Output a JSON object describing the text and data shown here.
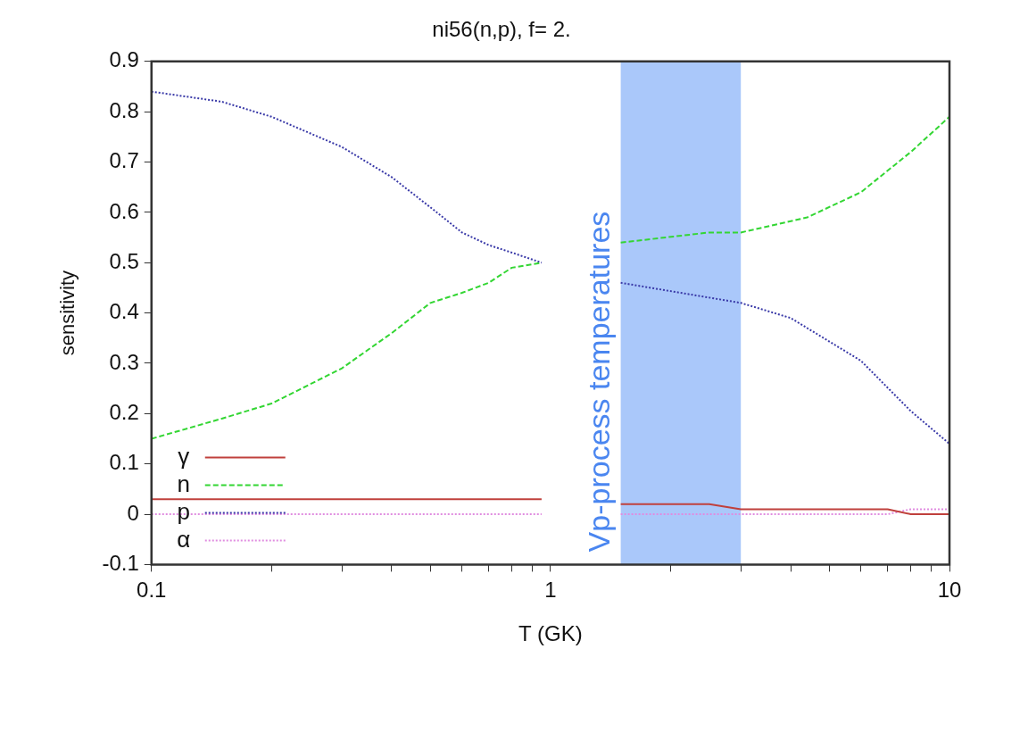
{
  "chart_data": {
    "type": "line",
    "title": "ni56(n,p), f= 2.",
    "xlabel": "T (GK)",
    "ylabel": "sensitivity",
    "log": "x",
    "xlim": [
      0.1,
      10
    ],
    "xticks": [
      0.1,
      {
        "value": 0.2,
        "label": null
      },
      {
        "value": 0.3,
        "label": null
      },
      {
        "value": 0.4,
        "label": null
      },
      {
        "value": 0.5,
        "label": null
      },
      {
        "value": 0.6,
        "label": null
      },
      {
        "value": 0.7,
        "label": null
      },
      {
        "value": 0.8,
        "label": null
      },
      {
        "value": 0.9,
        "label": null
      },
      1,
      {
        "value": 2,
        "label": null
      },
      {
        "value": 3,
        "label": null
      },
      {
        "value": 4,
        "label": null
      },
      {
        "value": 5,
        "label": null
      },
      {
        "value": 6,
        "label": null
      },
      {
        "value": 7,
        "label": null
      },
      {
        "value": 8,
        "label": null
      },
      {
        "value": 9,
        "label": null
      },
      10
    ],
    "ylim": [
      -0.1,
      0.9
    ],
    "yticks": [
      -0.1,
      0,
      0.1,
      0.2,
      0.3,
      0.4,
      0.5,
      0.6,
      0.7,
      0.8,
      0.9
    ],
    "grid": false,
    "legend": "bottom left",
    "marker": "none",
    "bands": [
      {
        "axis": "x",
        "from": 1.5,
        "to": 3,
        "label": "Vp-process temperatures",
        "color": "#aac8fa"
      }
    ],
    "series": [
      {
        "name": "γ",
        "color": "#c0403c",
        "line_style": "solid",
        "x": [
          0.1,
          0.95,
          1.2,
          1.5,
          2.5,
          3,
          7,
          8,
          10
        ],
        "values": [
          0.03,
          0.03,
          null,
          0.02,
          0.02,
          0.01,
          0.01,
          0,
          0
        ]
      },
      {
        "name": "n",
        "color": "#33d633",
        "line_style": "dashed",
        "x": [
          0.1,
          0.15,
          0.2,
          0.3,
          0.4,
          0.5,
          0.6,
          0.7,
          0.8,
          0.95,
          1.2,
          1.5,
          2.5,
          3,
          4.4,
          6,
          8,
          10
        ],
        "values": [
          0.15,
          0.19,
          0.22,
          0.29,
          0.36,
          0.42,
          0.44,
          0.46,
          0.49,
          0.5,
          null,
          0.54,
          0.56,
          0.56,
          0.59,
          0.64,
          0.72,
          0.79
        ]
      },
      {
        "name": "p",
        "color": "#3a3aa8",
        "line_style": "dotted",
        "x": [
          0.1,
          0.15,
          0.2,
          0.3,
          0.4,
          0.5,
          0.6,
          0.7,
          0.8,
          0.95,
          1.2,
          1.5,
          3,
          4,
          6,
          8,
          10
        ],
        "values": [
          0.84,
          0.82,
          0.79,
          0.73,
          0.67,
          0.61,
          0.56,
          0.535,
          0.52,
          0.5,
          null,
          0.46,
          0.42,
          0.39,
          0.305,
          0.205,
          0.14
        ]
      },
      {
        "name": "α",
        "color": "#e08ce0",
        "line_style": "dotted",
        "x": [
          0.1,
          0.95,
          1.2,
          1.5,
          7,
          8,
          10
        ],
        "values": [
          0,
          0,
          null,
          0,
          0,
          0.01,
          0.01
        ]
      }
    ]
  }
}
